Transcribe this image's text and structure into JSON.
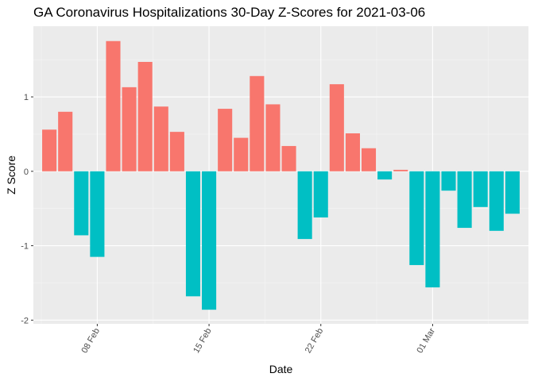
{
  "chart_data": {
    "type": "bar",
    "title": "GA Coronavirus Hospitalizations 30-Day Z-Scores for 2021-03-06",
    "xlabel": "Date",
    "ylabel": "Z Score",
    "x": [
      "2021-02-05",
      "2021-02-06",
      "2021-02-07",
      "2021-02-08",
      "2021-02-09",
      "2021-02-10",
      "2021-02-11",
      "2021-02-12",
      "2021-02-13",
      "2021-02-14",
      "2021-02-15",
      "2021-02-16",
      "2021-02-17",
      "2021-02-18",
      "2021-02-19",
      "2021-02-20",
      "2021-02-21",
      "2021-02-22",
      "2021-02-23",
      "2021-02-24",
      "2021-02-25",
      "2021-02-26",
      "2021-02-27",
      "2021-02-28",
      "2021-03-01",
      "2021-03-02",
      "2021-03-03",
      "2021-03-04",
      "2021-03-05",
      "2021-03-06"
    ],
    "values": [
      0.56,
      0.8,
      -0.86,
      -1.15,
      1.75,
      1.13,
      1.47,
      0.87,
      0.53,
      -1.68,
      -1.86,
      0.84,
      0.45,
      1.28,
      0.9,
      0.34,
      -0.91,
      -0.62,
      1.17,
      0.51,
      0.31,
      -0.11,
      0.02,
      -1.26,
      -1.56,
      -0.26,
      -0.76,
      -0.48,
      -0.8,
      -0.57
    ],
    "x_ticks": [
      {
        "date": "2021-02-08",
        "label": "08 Feb"
      },
      {
        "date": "2021-02-15",
        "label": "15 Feb"
      },
      {
        "date": "2021-02-22",
        "label": "22 Feb"
      },
      {
        "date": "2021-03-01",
        "label": "01 Mar"
      }
    ],
    "y_ticks": [
      -2,
      -1,
      0,
      1
    ],
    "ylim": [
      -2.05,
      1.95
    ],
    "xlim": [
      "2021-02-04",
      "2021-03-07"
    ],
    "grid": true,
    "legend": "none",
    "colors": {
      "positive": "#F8766D",
      "negative": "#00BFC4",
      "panel": "#EBEBEB",
      "grid_major": "#FFFFFF",
      "grid_minor": "#F5F5F5"
    }
  }
}
